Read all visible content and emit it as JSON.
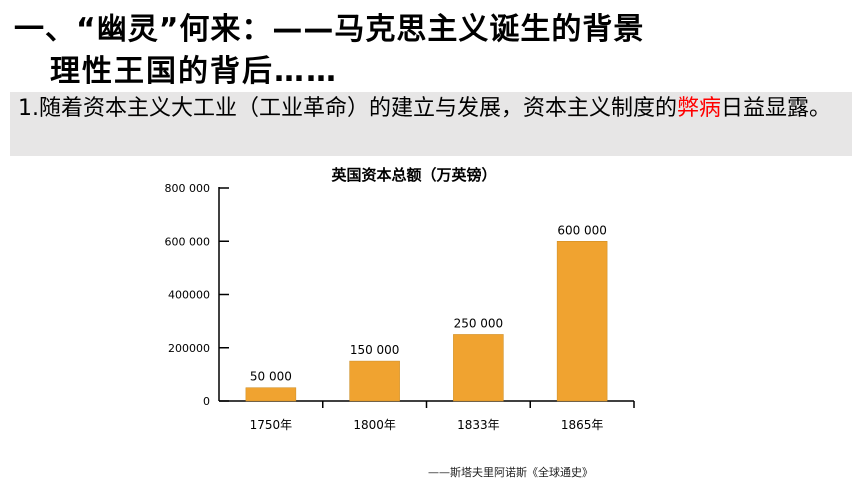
{
  "slide": {
    "title_line1": "一、“幽灵”何来：——马克思主义诞生的背景",
    "title_line2": "理性王国的背后……",
    "paragraph": {
      "before": "1.随着资本主义大工业（工业革命）的建立与发展，资本主义制度的",
      "highlight": "弊病",
      "after": "日益显露。",
      "highlight_color": "#ff0000"
    },
    "source": "——斯塔夫里阿诺斯《全球通史》"
  },
  "chart_data": {
    "type": "bar",
    "title": "英国资本总额（万英镑）",
    "categories": [
      "1750年",
      "1800年",
      "1833年",
      "1865年"
    ],
    "values": [
      50000,
      150000,
      250000,
      600000
    ],
    "data_labels": [
      "50 000",
      "150 000",
      "250 000",
      "600 000"
    ],
    "ylim": [
      0,
      800000
    ],
    "yticks": [
      0,
      200000,
      400000,
      600000,
      800000
    ],
    "ytick_labels": [
      "0",
      "200000",
      "400000",
      "600 000",
      "800 000"
    ],
    "bar_color": "#f0a330",
    "grid": false
  }
}
